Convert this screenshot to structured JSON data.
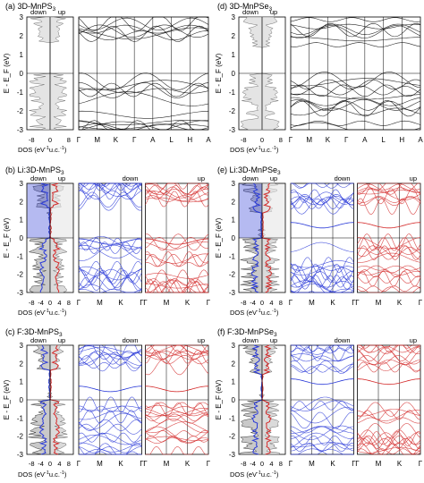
{
  "chart_data": [
    {
      "panel": "a",
      "title": "(a) 3D-MnPS3",
      "type": "band-structure-with-dos",
      "material": "3D-MnPS3",
      "doping": "none",
      "ylabel": "E - E_F (eV)",
      "ylim": [
        -3,
        3
      ],
      "yticks": [
        -3,
        -2,
        -1,
        0,
        1,
        2,
        3
      ],
      "dos": {
        "xlabel": "DOS (eV^-1 u.c.^-1)",
        "xticks": [
          -8,
          0,
          8
        ],
        "spin_labels": [
          "down",
          "up"
        ]
      },
      "kpath": [
        "Γ",
        "M",
        "K",
        "Γ",
        "A",
        "L",
        "H",
        "A"
      ],
      "band_colors": [
        "#000000"
      ]
    },
    {
      "panel": "b",
      "title": "(b) Li:3D-MnPS3",
      "type": "band-structure-with-dos",
      "material": "3D-MnPS3",
      "doping": "Li",
      "ylabel": "E - E_F (eV)",
      "ylim": [
        -3,
        3
      ],
      "yticks": [
        -3,
        -2,
        -1,
        0,
        1,
        2,
        3
      ],
      "dos": {
        "xlabel": "DOS (eV^-1 u.c.^-1)",
        "xticks": [
          -8,
          -4,
          0,
          4,
          8
        ],
        "spin_labels": [
          "down",
          "up"
        ]
      },
      "kpath_spin_down": [
        "Γ",
        "M",
        "K",
        "Γ"
      ],
      "kpath_spin_up": [
        "Γ",
        "M",
        "K",
        "Γ"
      ],
      "spin_labels": [
        "down",
        "up"
      ],
      "band_colors": [
        "#2a3ad8",
        "#d42a2a"
      ]
    },
    {
      "panel": "c",
      "title": "(c) F:3D-MnPS3",
      "type": "band-structure-with-dos",
      "material": "3D-MnPS3",
      "doping": "F",
      "ylabel": "E - E_F (eV)",
      "ylim": [
        -3,
        3
      ],
      "yticks": [
        -3,
        -2,
        -1,
        0,
        1,
        2,
        3
      ],
      "dos": {
        "xlabel": "DOS (eV^-1 u.c.^-1)",
        "xticks": [
          -8,
          -4,
          0,
          4,
          8
        ],
        "spin_labels": [
          "down",
          "up"
        ]
      },
      "kpath_spin_down": [
        "Γ",
        "M",
        "K",
        "Γ"
      ],
      "kpath_spin_up": [
        "Γ",
        "M",
        "K",
        "Γ"
      ],
      "spin_labels": [
        "down",
        "up"
      ],
      "band_colors": [
        "#2a3ad8",
        "#d42a2a"
      ]
    },
    {
      "panel": "d",
      "title": "(d) 3D-MnPSe3",
      "type": "band-structure-with-dos",
      "material": "3D-MnPSe3",
      "doping": "none",
      "ylabel": "E - E_F (eV)",
      "ylim": [
        -3,
        3
      ],
      "yticks": [
        -3,
        -2,
        -1,
        0,
        1,
        2,
        3
      ],
      "dos": {
        "xlabel": "DOS (eV^-1 u.c.^-1)",
        "xticks": [
          -8,
          0,
          8
        ],
        "spin_labels": [
          "down",
          "up"
        ]
      },
      "kpath": [
        "Γ",
        "M",
        "K",
        "Γ",
        "A",
        "L",
        "H",
        "A"
      ],
      "band_colors": [
        "#000000"
      ]
    },
    {
      "panel": "e",
      "title": "(e) Li:3D-MnPSe3",
      "type": "band-structure-with-dos",
      "material": "3D-MnPSe3",
      "doping": "Li",
      "ylabel": "E - E_F (eV)",
      "ylim": [
        -3,
        3
      ],
      "yticks": [
        -3,
        -2,
        -1,
        0,
        1,
        2,
        3
      ],
      "dos": {
        "xlabel": "DOS (eV^-1 u.c.^-1)",
        "xticks": [
          -8,
          -4,
          0,
          4,
          8
        ],
        "spin_labels": [
          "down",
          "up"
        ]
      },
      "kpath_spin_down": [
        "Γ",
        "M",
        "K",
        "Γ"
      ],
      "kpath_spin_up": [
        "Γ",
        "M",
        "K",
        "Γ"
      ],
      "spin_labels": [
        "down",
        "up"
      ],
      "band_colors": [
        "#2a3ad8",
        "#d42a2a"
      ]
    },
    {
      "panel": "f",
      "title": "(f) F:3D-MnPSe3",
      "type": "band-structure-with-dos",
      "material": "3D-MnPSe3",
      "doping": "F",
      "ylabel": "E - E_F (eV)",
      "ylim": [
        -3,
        3
      ],
      "yticks": [
        -3,
        -2,
        -1,
        0,
        1,
        2,
        3
      ],
      "dos": {
        "xlabel": "DOS (eV^-1 u.c.^-1)",
        "xticks": [
          -8,
          -4,
          0,
          4,
          8
        ],
        "spin_labels": [
          "down",
          "up"
        ]
      },
      "kpath_spin_down": [
        "Γ",
        "M",
        "K",
        "Γ"
      ],
      "kpath_spin_up": [
        "Γ",
        "M",
        "K",
        "Γ"
      ],
      "spin_labels": [
        "down",
        "up"
      ],
      "band_colors": [
        "#2a3ad8",
        "#d42a2a"
      ]
    }
  ]
}
